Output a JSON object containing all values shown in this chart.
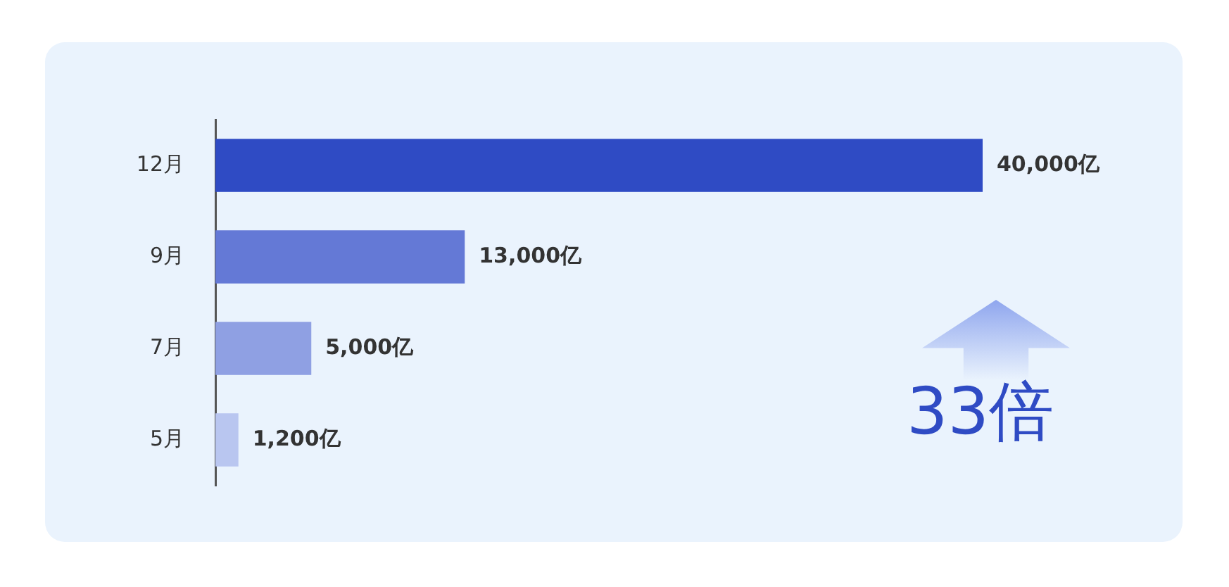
{
  "chart_data": {
    "type": "bar",
    "orientation": "horizontal",
    "categories": [
      "12月",
      "9月",
      "7月",
      "5月"
    ],
    "values": [
      40000,
      13000,
      5000,
      1200
    ],
    "colors": [
      "#2f4bc4",
      "#6479d6",
      "#8fa0e3",
      "#b9c6f0"
    ],
    "value_labels": [
      "40,000亿",
      "13,000亿",
      "5,000亿",
      "1,200亿"
    ],
    "grid": false,
    "legend": false,
    "annotations": [
      "33倍"
    ]
  }
}
